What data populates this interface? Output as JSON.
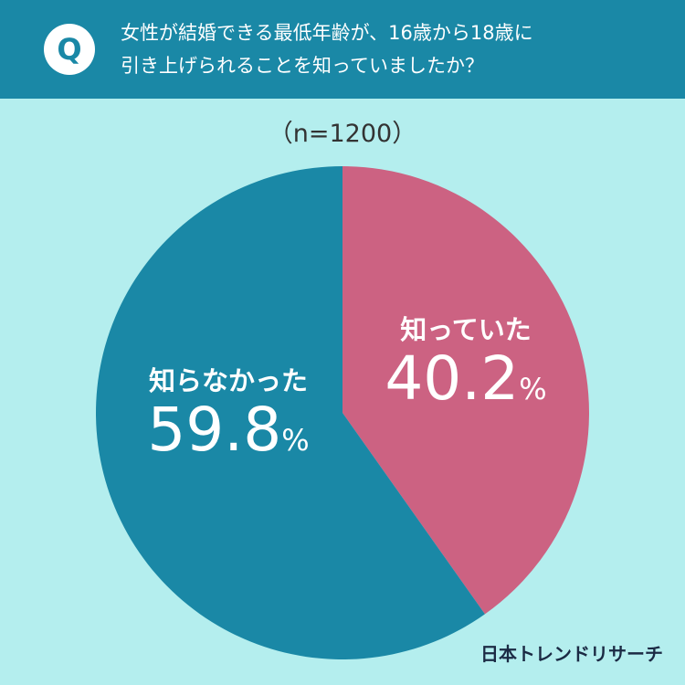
{
  "header": {
    "badge": "Q",
    "question_line1": "女性が結婚できる最低年齢が、16歳から18歳に",
    "question_line2": "引き上げられることを知っていましたか？"
  },
  "chart_data": {
    "type": "pie",
    "sample_size_label": "（n=1200）",
    "slices": [
      {
        "label": "知っていた",
        "value": 40.2,
        "display": "40.2",
        "color": "#cc6282"
      },
      {
        "label": "知らなかった",
        "value": 59.8,
        "display": "59.8",
        "color": "#1a88a6"
      }
    ],
    "unit": "%"
  },
  "footer": {
    "logo_text": "日本トレンドリサーチ"
  }
}
